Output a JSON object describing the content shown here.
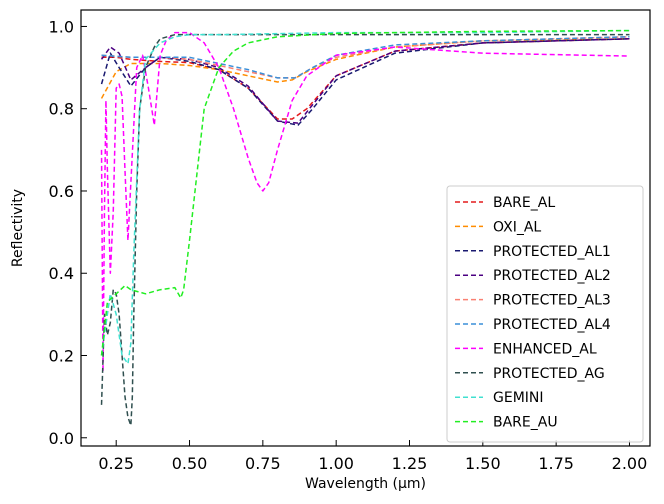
{
  "chart_data": {
    "type": "line",
    "title": "",
    "xlabel": "Wavelength  (μm)",
    "ylabel": "Reflectivity",
    "xlim": [
      0.13,
      2.07
    ],
    "ylim": [
      -0.02,
      1.04
    ],
    "xticks": [
      0.25,
      0.5,
      0.75,
      1.0,
      1.25,
      1.5,
      1.75,
      2.0
    ],
    "xtick_labels": [
      "0.25",
      "0.50",
      "0.75",
      "1.00",
      "1.25",
      "1.50",
      "1.75",
      "2.00"
    ],
    "yticks": [
      0.0,
      0.2,
      0.4,
      0.6,
      0.8,
      1.0
    ],
    "ytick_labels": [
      "0.0",
      "0.2",
      "0.4",
      "0.6",
      "0.8",
      "1.0"
    ],
    "grid": false,
    "legend_position": "lower-right",
    "line_style": "dashed",
    "series": [
      {
        "name": "BARE_AL",
        "color": "#e41a1c",
        "x": [
          0.2,
          0.25,
          0.3,
          0.4,
          0.5,
          0.6,
          0.7,
          0.8,
          0.85,
          0.9,
          1.0,
          1.2,
          1.5,
          2.0
        ],
        "y": [
          0.925,
          0.925,
          0.92,
          0.915,
          0.912,
          0.895,
          0.85,
          0.775,
          0.775,
          0.8,
          0.88,
          0.94,
          0.96,
          0.97
        ]
      },
      {
        "name": "OXI_AL",
        "color": "#ff8c00",
        "x": [
          0.2,
          0.25,
          0.3,
          0.4,
          0.5,
          0.6,
          0.7,
          0.8,
          0.85,
          0.9,
          1.0,
          1.2,
          1.5,
          2.0
        ],
        "y": [
          0.825,
          0.89,
          0.91,
          0.91,
          0.905,
          0.895,
          0.88,
          0.865,
          0.87,
          0.89,
          0.92,
          0.95,
          0.965,
          0.97
        ]
      },
      {
        "name": "PROTECTED_AL1",
        "color": "#191970",
        "x": [
          0.2,
          0.23,
          0.26,
          0.3,
          0.35,
          0.4,
          0.5,
          0.6,
          0.7,
          0.8,
          0.87,
          0.92,
          1.0,
          1.2,
          1.5,
          2.0
        ],
        "y": [
          0.86,
          0.935,
          0.9,
          0.855,
          0.9,
          0.925,
          0.915,
          0.895,
          0.85,
          0.77,
          0.76,
          0.8,
          0.87,
          0.935,
          0.96,
          0.97
        ]
      },
      {
        "name": "PROTECTED_AL2",
        "color": "#4b0082",
        "x": [
          0.2,
          0.23,
          0.26,
          0.3,
          0.35,
          0.4,
          0.5,
          0.6,
          0.7,
          0.8,
          0.87,
          0.92,
          1.0,
          1.2,
          1.5,
          2.0
        ],
        "y": [
          0.92,
          0.95,
          0.935,
          0.87,
          0.9,
          0.925,
          0.92,
          0.9,
          0.855,
          0.77,
          0.765,
          0.81,
          0.88,
          0.94,
          0.96,
          0.97
        ]
      },
      {
        "name": "PROTECTED_AL3",
        "color": "#fa8072",
        "x": [
          0.2,
          0.3,
          0.4,
          0.5,
          0.6,
          0.7,
          0.8,
          0.86,
          0.92,
          1.0,
          1.2,
          1.5,
          2.0
        ],
        "y": [
          0.93,
          0.925,
          0.925,
          0.92,
          0.905,
          0.89,
          0.875,
          0.875,
          0.9,
          0.925,
          0.95,
          0.965,
          0.975
        ]
      },
      {
        "name": "PROTECTED_AL4",
        "color": "#3a8fd8",
        "x": [
          0.2,
          0.3,
          0.4,
          0.5,
          0.6,
          0.7,
          0.8,
          0.86,
          0.92,
          1.0,
          1.2,
          1.5,
          2.0
        ],
        "y": [
          0.93,
          0.925,
          0.925,
          0.925,
          0.91,
          0.895,
          0.875,
          0.875,
          0.9,
          0.93,
          0.955,
          0.965,
          0.975
        ]
      },
      {
        "name": "ENHANCED_AL",
        "color": "#ff00ff",
        "x": [
          0.2,
          0.205,
          0.21,
          0.215,
          0.22,
          0.23,
          0.24,
          0.25,
          0.26,
          0.27,
          0.28,
          0.29,
          0.3,
          0.32,
          0.34,
          0.36,
          0.38,
          0.4,
          0.42,
          0.45,
          0.5,
          0.55,
          0.6,
          0.65,
          0.7,
          0.73,
          0.75,
          0.77,
          0.8,
          0.85,
          0.9,
          1.0,
          1.2,
          1.5,
          2.0
        ],
        "y": [
          0.7,
          0.16,
          0.55,
          0.82,
          0.65,
          0.4,
          0.55,
          0.85,
          0.86,
          0.83,
          0.65,
          0.48,
          0.62,
          0.9,
          0.93,
          0.85,
          0.76,
          0.93,
          0.965,
          0.985,
          0.985,
          0.96,
          0.9,
          0.8,
          0.68,
          0.62,
          0.6,
          0.62,
          0.7,
          0.82,
          0.88,
          0.93,
          0.95,
          0.935,
          0.928
        ]
      },
      {
        "name": "PROTECTED_AG",
        "color": "#2f4f4f",
        "x": [
          0.2,
          0.21,
          0.22,
          0.23,
          0.24,
          0.25,
          0.26,
          0.27,
          0.28,
          0.29,
          0.3,
          0.305,
          0.31,
          0.32,
          0.33,
          0.35,
          0.38,
          0.4,
          0.45,
          0.5,
          0.6,
          1.0,
          1.5,
          2.0
        ],
        "y": [
          0.08,
          0.3,
          0.25,
          0.28,
          0.36,
          0.35,
          0.3,
          0.2,
          0.1,
          0.05,
          0.03,
          0.1,
          0.3,
          0.6,
          0.8,
          0.9,
          0.95,
          0.97,
          0.98,
          0.98,
          0.98,
          0.98,
          0.98,
          0.98
        ]
      },
      {
        "name": "GEMINI",
        "color": "#40e0d0",
        "x": [
          0.2,
          0.23,
          0.25,
          0.27,
          0.29,
          0.3,
          0.31,
          0.33,
          0.35,
          0.4,
          0.45,
          0.5,
          0.6,
          1.0,
          1.5,
          2.0
        ],
        "y": [
          0.2,
          0.35,
          0.3,
          0.2,
          0.18,
          0.23,
          0.45,
          0.8,
          0.92,
          0.96,
          0.975,
          0.98,
          0.98,
          0.985,
          0.985,
          0.99
        ]
      },
      {
        "name": "BARE_AU",
        "color": "#22ee22",
        "x": [
          0.2,
          0.22,
          0.25,
          0.28,
          0.3,
          0.35,
          0.4,
          0.45,
          0.47,
          0.48,
          0.5,
          0.55,
          0.6,
          0.65,
          0.7,
          0.8,
          1.0,
          1.5,
          2.0
        ],
        "y": [
          0.2,
          0.33,
          0.35,
          0.37,
          0.36,
          0.35,
          0.36,
          0.365,
          0.34,
          0.36,
          0.48,
          0.8,
          0.9,
          0.94,
          0.96,
          0.975,
          0.983,
          0.988,
          0.99
        ]
      }
    ]
  }
}
